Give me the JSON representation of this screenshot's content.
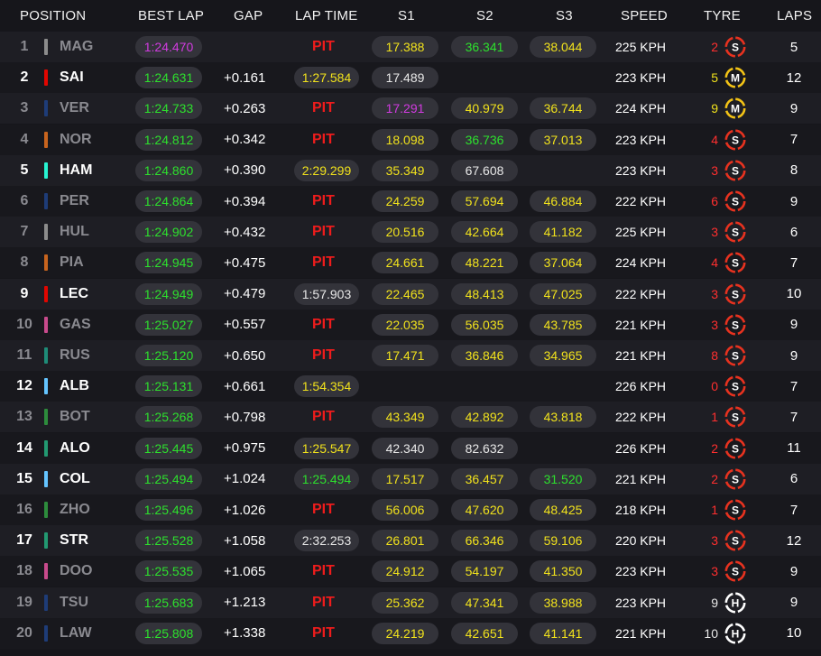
{
  "headers": {
    "position": "POSITION",
    "best_lap": "BEST LAP",
    "gap": "GAP",
    "lap_time": "LAP TIME",
    "s1": "S1",
    "s2": "S2",
    "s3": "S3",
    "speed": "SPEED",
    "tyre": "TYRE",
    "laps": "LAPS"
  },
  "colors": {
    "green": "#2de02d",
    "purple": "#d13be0",
    "yellow": "#f1e21c",
    "white": "#e8e8e8",
    "red": "#ee1c1c",
    "soft": "#e8321f",
    "medium": "#f3c316",
    "hard": "#ffffff"
  },
  "rows": [
    {
      "pos": "1",
      "code": "MAG",
      "team_color": "#8c8c8c",
      "dim": true,
      "best_lap": "1:24.470",
      "bl_c": "p",
      "gap": "",
      "lap_time": "PIT",
      "lt_pit": true,
      "lt_c": "",
      "s1": "17.388",
      "s1_c": "y",
      "s2": "36.341",
      "s2_c": "g",
      "s3": "38.044",
      "s3_c": "y",
      "speed": "225 KPH",
      "tyre_count": "2",
      "tyre_count_c": "r",
      "tyre": "S",
      "tyre_icon": "soft-tyre-icon",
      "laps": "5"
    },
    {
      "pos": "2",
      "code": "SAI",
      "team_color": "#e10600",
      "dim": false,
      "best_lap": "1:24.631",
      "bl_c": "g",
      "gap": "+0.161",
      "lap_time": "1:27.584",
      "lt_pit": false,
      "lt_c": "y",
      "s1": "17.489",
      "s1_c": "w",
      "s2": "",
      "s2_c": "w",
      "s3": "",
      "s3_c": "w",
      "speed": "223 KPH",
      "tyre_count": "5",
      "tyre_count_c": "y",
      "tyre": "M",
      "tyre_icon": "medium-tyre-icon",
      "laps": "12"
    },
    {
      "pos": "3",
      "code": "VER",
      "team_color": "#1e3c78",
      "dim": true,
      "best_lap": "1:24.733",
      "bl_c": "g",
      "gap": "+0.263",
      "lap_time": "PIT",
      "lt_pit": true,
      "lt_c": "",
      "s1": "17.291",
      "s1_c": "p",
      "s2": "40.979",
      "s2_c": "y",
      "s3": "36.744",
      "s3_c": "y",
      "speed": "224 KPH",
      "tyre_count": "9",
      "tyre_count_c": "y",
      "tyre": "M",
      "tyre_icon": "medium-tyre-icon",
      "laps": "9"
    },
    {
      "pos": "4",
      "code": "NOR",
      "team_color": "#c8641e",
      "dim": true,
      "best_lap": "1:24.812",
      "bl_c": "g",
      "gap": "+0.342",
      "lap_time": "PIT",
      "lt_pit": true,
      "lt_c": "",
      "s1": "18.098",
      "s1_c": "y",
      "s2": "36.736",
      "s2_c": "g",
      "s3": "37.013",
      "s3_c": "y",
      "speed": "223 KPH",
      "tyre_count": "4",
      "tyre_count_c": "r",
      "tyre": "S",
      "tyre_icon": "soft-tyre-icon",
      "laps": "7"
    },
    {
      "pos": "5",
      "code": "HAM",
      "team_color": "#27f4d2",
      "dim": false,
      "best_lap": "1:24.860",
      "bl_c": "g",
      "gap": "+0.390",
      "lap_time": "2:29.299",
      "lt_pit": false,
      "lt_c": "y",
      "s1": "35.349",
      "s1_c": "y",
      "s2": "67.608",
      "s2_c": "w",
      "s3": "",
      "s3_c": "w",
      "speed": "223 KPH",
      "tyre_count": "3",
      "tyre_count_c": "r",
      "tyre": "S",
      "tyre_icon": "soft-tyre-icon",
      "laps": "8"
    },
    {
      "pos": "6",
      "code": "PER",
      "team_color": "#1e3c78",
      "dim": true,
      "best_lap": "1:24.864",
      "bl_c": "g",
      "gap": "+0.394",
      "lap_time": "PIT",
      "lt_pit": true,
      "lt_c": "",
      "s1": "24.259",
      "s1_c": "y",
      "s2": "57.694",
      "s2_c": "y",
      "s3": "46.884",
      "s3_c": "y",
      "speed": "222 KPH",
      "tyre_count": "6",
      "tyre_count_c": "r",
      "tyre": "S",
      "tyre_icon": "soft-tyre-icon",
      "laps": "9"
    },
    {
      "pos": "7",
      "code": "HUL",
      "team_color": "#8c8c8c",
      "dim": true,
      "best_lap": "1:24.902",
      "bl_c": "g",
      "gap": "+0.432",
      "lap_time": "PIT",
      "lt_pit": true,
      "lt_c": "",
      "s1": "20.516",
      "s1_c": "y",
      "s2": "42.664",
      "s2_c": "y",
      "s3": "41.182",
      "s3_c": "y",
      "speed": "225 KPH",
      "tyre_count": "3",
      "tyre_count_c": "r",
      "tyre": "S",
      "tyre_icon": "soft-tyre-icon",
      "laps": "6"
    },
    {
      "pos": "8",
      "code": "PIA",
      "team_color": "#c8641e",
      "dim": true,
      "best_lap": "1:24.945",
      "bl_c": "g",
      "gap": "+0.475",
      "lap_time": "PIT",
      "lt_pit": true,
      "lt_c": "",
      "s1": "24.661",
      "s1_c": "y",
      "s2": "48.221",
      "s2_c": "y",
      "s3": "37.064",
      "s3_c": "y",
      "speed": "224 KPH",
      "tyre_count": "4",
      "tyre_count_c": "r",
      "tyre": "S",
      "tyre_icon": "soft-tyre-icon",
      "laps": "7"
    },
    {
      "pos": "9",
      "code": "LEC",
      "team_color": "#e10600",
      "dim": false,
      "best_lap": "1:24.949",
      "bl_c": "g",
      "gap": "+0.479",
      "lap_time": "1:57.903",
      "lt_pit": false,
      "lt_c": "w",
      "s1": "22.465",
      "s1_c": "y",
      "s2": "48.413",
      "s2_c": "y",
      "s3": "47.025",
      "s3_c": "y",
      "speed": "222 KPH",
      "tyre_count": "3",
      "tyre_count_c": "r",
      "tyre": "S",
      "tyre_icon": "soft-tyre-icon",
      "laps": "10"
    },
    {
      "pos": "10",
      "code": "GAS",
      "team_color": "#c84a8c",
      "dim": true,
      "best_lap": "1:25.027",
      "bl_c": "g",
      "gap": "+0.557",
      "lap_time": "PIT",
      "lt_pit": true,
      "lt_c": "",
      "s1": "22.035",
      "s1_c": "y",
      "s2": "56.035",
      "s2_c": "y",
      "s3": "43.785",
      "s3_c": "y",
      "speed": "221 KPH",
      "tyre_count": "3",
      "tyre_count_c": "r",
      "tyre": "S",
      "tyre_icon": "soft-tyre-icon",
      "laps": "9"
    },
    {
      "pos": "11",
      "code": "RUS",
      "team_color": "#1e8c78",
      "dim": true,
      "best_lap": "1:25.120",
      "bl_c": "g",
      "gap": "+0.650",
      "lap_time": "PIT",
      "lt_pit": true,
      "lt_c": "",
      "s1": "17.471",
      "s1_c": "y",
      "s2": "36.846",
      "s2_c": "y",
      "s3": "34.965",
      "s3_c": "y",
      "speed": "221 KPH",
      "tyre_count": "8",
      "tyre_count_c": "r",
      "tyre": "S",
      "tyre_icon": "soft-tyre-icon",
      "laps": "9"
    },
    {
      "pos": "12",
      "code": "ALB",
      "team_color": "#64c4ff",
      "dim": false,
      "best_lap": "1:25.131",
      "bl_c": "g",
      "gap": "+0.661",
      "lap_time": "1:54.354",
      "lt_pit": false,
      "lt_c": "y",
      "s1": "",
      "s1_c": "w",
      "s2": "",
      "s2_c": "w",
      "s3": "",
      "s3_c": "w",
      "speed": "226 KPH",
      "tyre_count": "0",
      "tyre_count_c": "r",
      "tyre": "S",
      "tyre_icon": "soft-tyre-icon",
      "laps": "7"
    },
    {
      "pos": "13",
      "code": "BOT",
      "team_color": "#2d8c3c",
      "dim": true,
      "best_lap": "1:25.268",
      "bl_c": "g",
      "gap": "+0.798",
      "lap_time": "PIT",
      "lt_pit": true,
      "lt_c": "",
      "s1": "43.349",
      "s1_c": "y",
      "s2": "42.892",
      "s2_c": "y",
      "s3": "43.818",
      "s3_c": "y",
      "speed": "222 KPH",
      "tyre_count": "1",
      "tyre_count_c": "r",
      "tyre": "S",
      "tyre_icon": "soft-tyre-icon",
      "laps": "7"
    },
    {
      "pos": "14",
      "code": "ALO",
      "team_color": "#229971",
      "dim": false,
      "best_lap": "1:25.445",
      "bl_c": "g",
      "gap": "+0.975",
      "lap_time": "1:25.547",
      "lt_pit": false,
      "lt_c": "y",
      "s1": "42.340",
      "s1_c": "w",
      "s2": "82.632",
      "s2_c": "w",
      "s3": "",
      "s3_c": "w",
      "speed": "226 KPH",
      "tyre_count": "2",
      "tyre_count_c": "r",
      "tyre": "S",
      "tyre_icon": "soft-tyre-icon",
      "laps": "11"
    },
    {
      "pos": "15",
      "code": "COL",
      "team_color": "#64c4ff",
      "dim": false,
      "best_lap": "1:25.494",
      "bl_c": "g",
      "gap": "+1.024",
      "lap_time": "1:25.494",
      "lt_pit": false,
      "lt_c": "g",
      "s1": "17.517",
      "s1_c": "y",
      "s2": "36.457",
      "s2_c": "y",
      "s3": "31.520",
      "s3_c": "g",
      "speed": "221 KPH",
      "tyre_count": "2",
      "tyre_count_c": "r",
      "tyre": "S",
      "tyre_icon": "soft-tyre-icon",
      "laps": "6"
    },
    {
      "pos": "16",
      "code": "ZHO",
      "team_color": "#2d8c3c",
      "dim": true,
      "best_lap": "1:25.496",
      "bl_c": "g",
      "gap": "+1.026",
      "lap_time": "PIT",
      "lt_pit": true,
      "lt_c": "",
      "s1": "56.006",
      "s1_c": "y",
      "s2": "47.620",
      "s2_c": "y",
      "s3": "48.425",
      "s3_c": "y",
      "speed": "218 KPH",
      "tyre_count": "1",
      "tyre_count_c": "r",
      "tyre": "S",
      "tyre_icon": "soft-tyre-icon",
      "laps": "7"
    },
    {
      "pos": "17",
      "code": "STR",
      "team_color": "#229971",
      "dim": false,
      "best_lap": "1:25.528",
      "bl_c": "g",
      "gap": "+1.058",
      "lap_time": "2:32.253",
      "lt_pit": false,
      "lt_c": "w",
      "s1": "26.801",
      "s1_c": "y",
      "s2": "66.346",
      "s2_c": "y",
      "s3": "59.106",
      "s3_c": "y",
      "speed": "220 KPH",
      "tyre_count": "3",
      "tyre_count_c": "r",
      "tyre": "S",
      "tyre_icon": "soft-tyre-icon",
      "laps": "12"
    },
    {
      "pos": "18",
      "code": "DOO",
      "team_color": "#c84a8c",
      "dim": true,
      "best_lap": "1:25.535",
      "bl_c": "g",
      "gap": "+1.065",
      "lap_time": "PIT",
      "lt_pit": true,
      "lt_c": "",
      "s1": "24.912",
      "s1_c": "y",
      "s2": "54.197",
      "s2_c": "y",
      "s3": "41.350",
      "s3_c": "y",
      "speed": "223 KPH",
      "tyre_count": "3",
      "tyre_count_c": "r",
      "tyre": "S",
      "tyre_icon": "soft-tyre-icon",
      "laps": "9"
    },
    {
      "pos": "19",
      "code": "TSU",
      "team_color": "#1e3c78",
      "dim": true,
      "best_lap": "1:25.683",
      "bl_c": "g",
      "gap": "+1.213",
      "lap_time": "PIT",
      "lt_pit": true,
      "lt_c": "",
      "s1": "25.362",
      "s1_c": "y",
      "s2": "47.341",
      "s2_c": "y",
      "s3": "38.988",
      "s3_c": "y",
      "speed": "223 KPH",
      "tyre_count": "9",
      "tyre_count_c": "w",
      "tyre": "H",
      "tyre_icon": "hard-tyre-icon",
      "laps": "9"
    },
    {
      "pos": "20",
      "code": "LAW",
      "team_color": "#1e3c78",
      "dim": true,
      "best_lap": "1:25.808",
      "bl_c": "g",
      "gap": "+1.338",
      "lap_time": "PIT",
      "lt_pit": true,
      "lt_c": "",
      "s1": "24.219",
      "s1_c": "y",
      "s2": "42.651",
      "s2_c": "y",
      "s3": "41.141",
      "s3_c": "y",
      "speed": "221 KPH",
      "tyre_count": "10",
      "tyre_count_c": "w",
      "tyre": "H",
      "tyre_icon": "hard-tyre-icon",
      "laps": "10"
    }
  ]
}
